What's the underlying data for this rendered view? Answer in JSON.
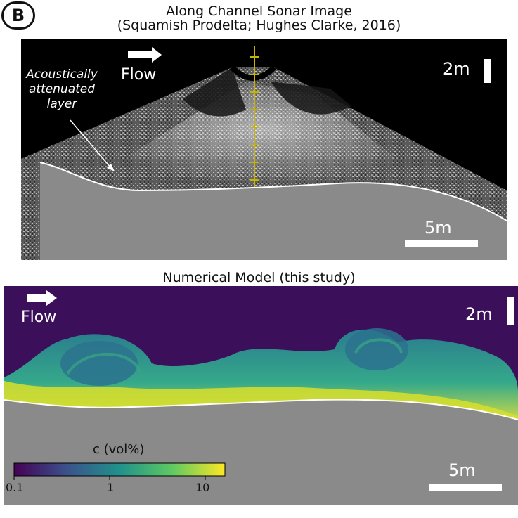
{
  "panel_label": "B",
  "sonar": {
    "title_line1": "Along Channel Sonar Image",
    "title_line2": "(Squamish Prodelta; Hughes Clarke, 2016)",
    "flow_label": "Flow",
    "vertical_scale": "2m",
    "horizontal_scale": "5m",
    "annotation": [
      "Acoustically",
      "attenuated",
      "layer"
    ]
  },
  "model": {
    "title": "Numerical Model (this study)",
    "flow_label": "Flow",
    "vertical_scale": "2m",
    "horizontal_scale": "5m"
  },
  "colorbar": {
    "label": "c (vol%)",
    "ticks": [
      "0.1",
      "1",
      "10"
    ],
    "colormap": [
      "#440154",
      "#3b528b",
      "#21918c",
      "#5ec962",
      "#fde725"
    ]
  },
  "colors": {
    "seabed": "#8a8a8a",
    "model_background": "#3b0f5a",
    "sonar_background": "#000000"
  }
}
